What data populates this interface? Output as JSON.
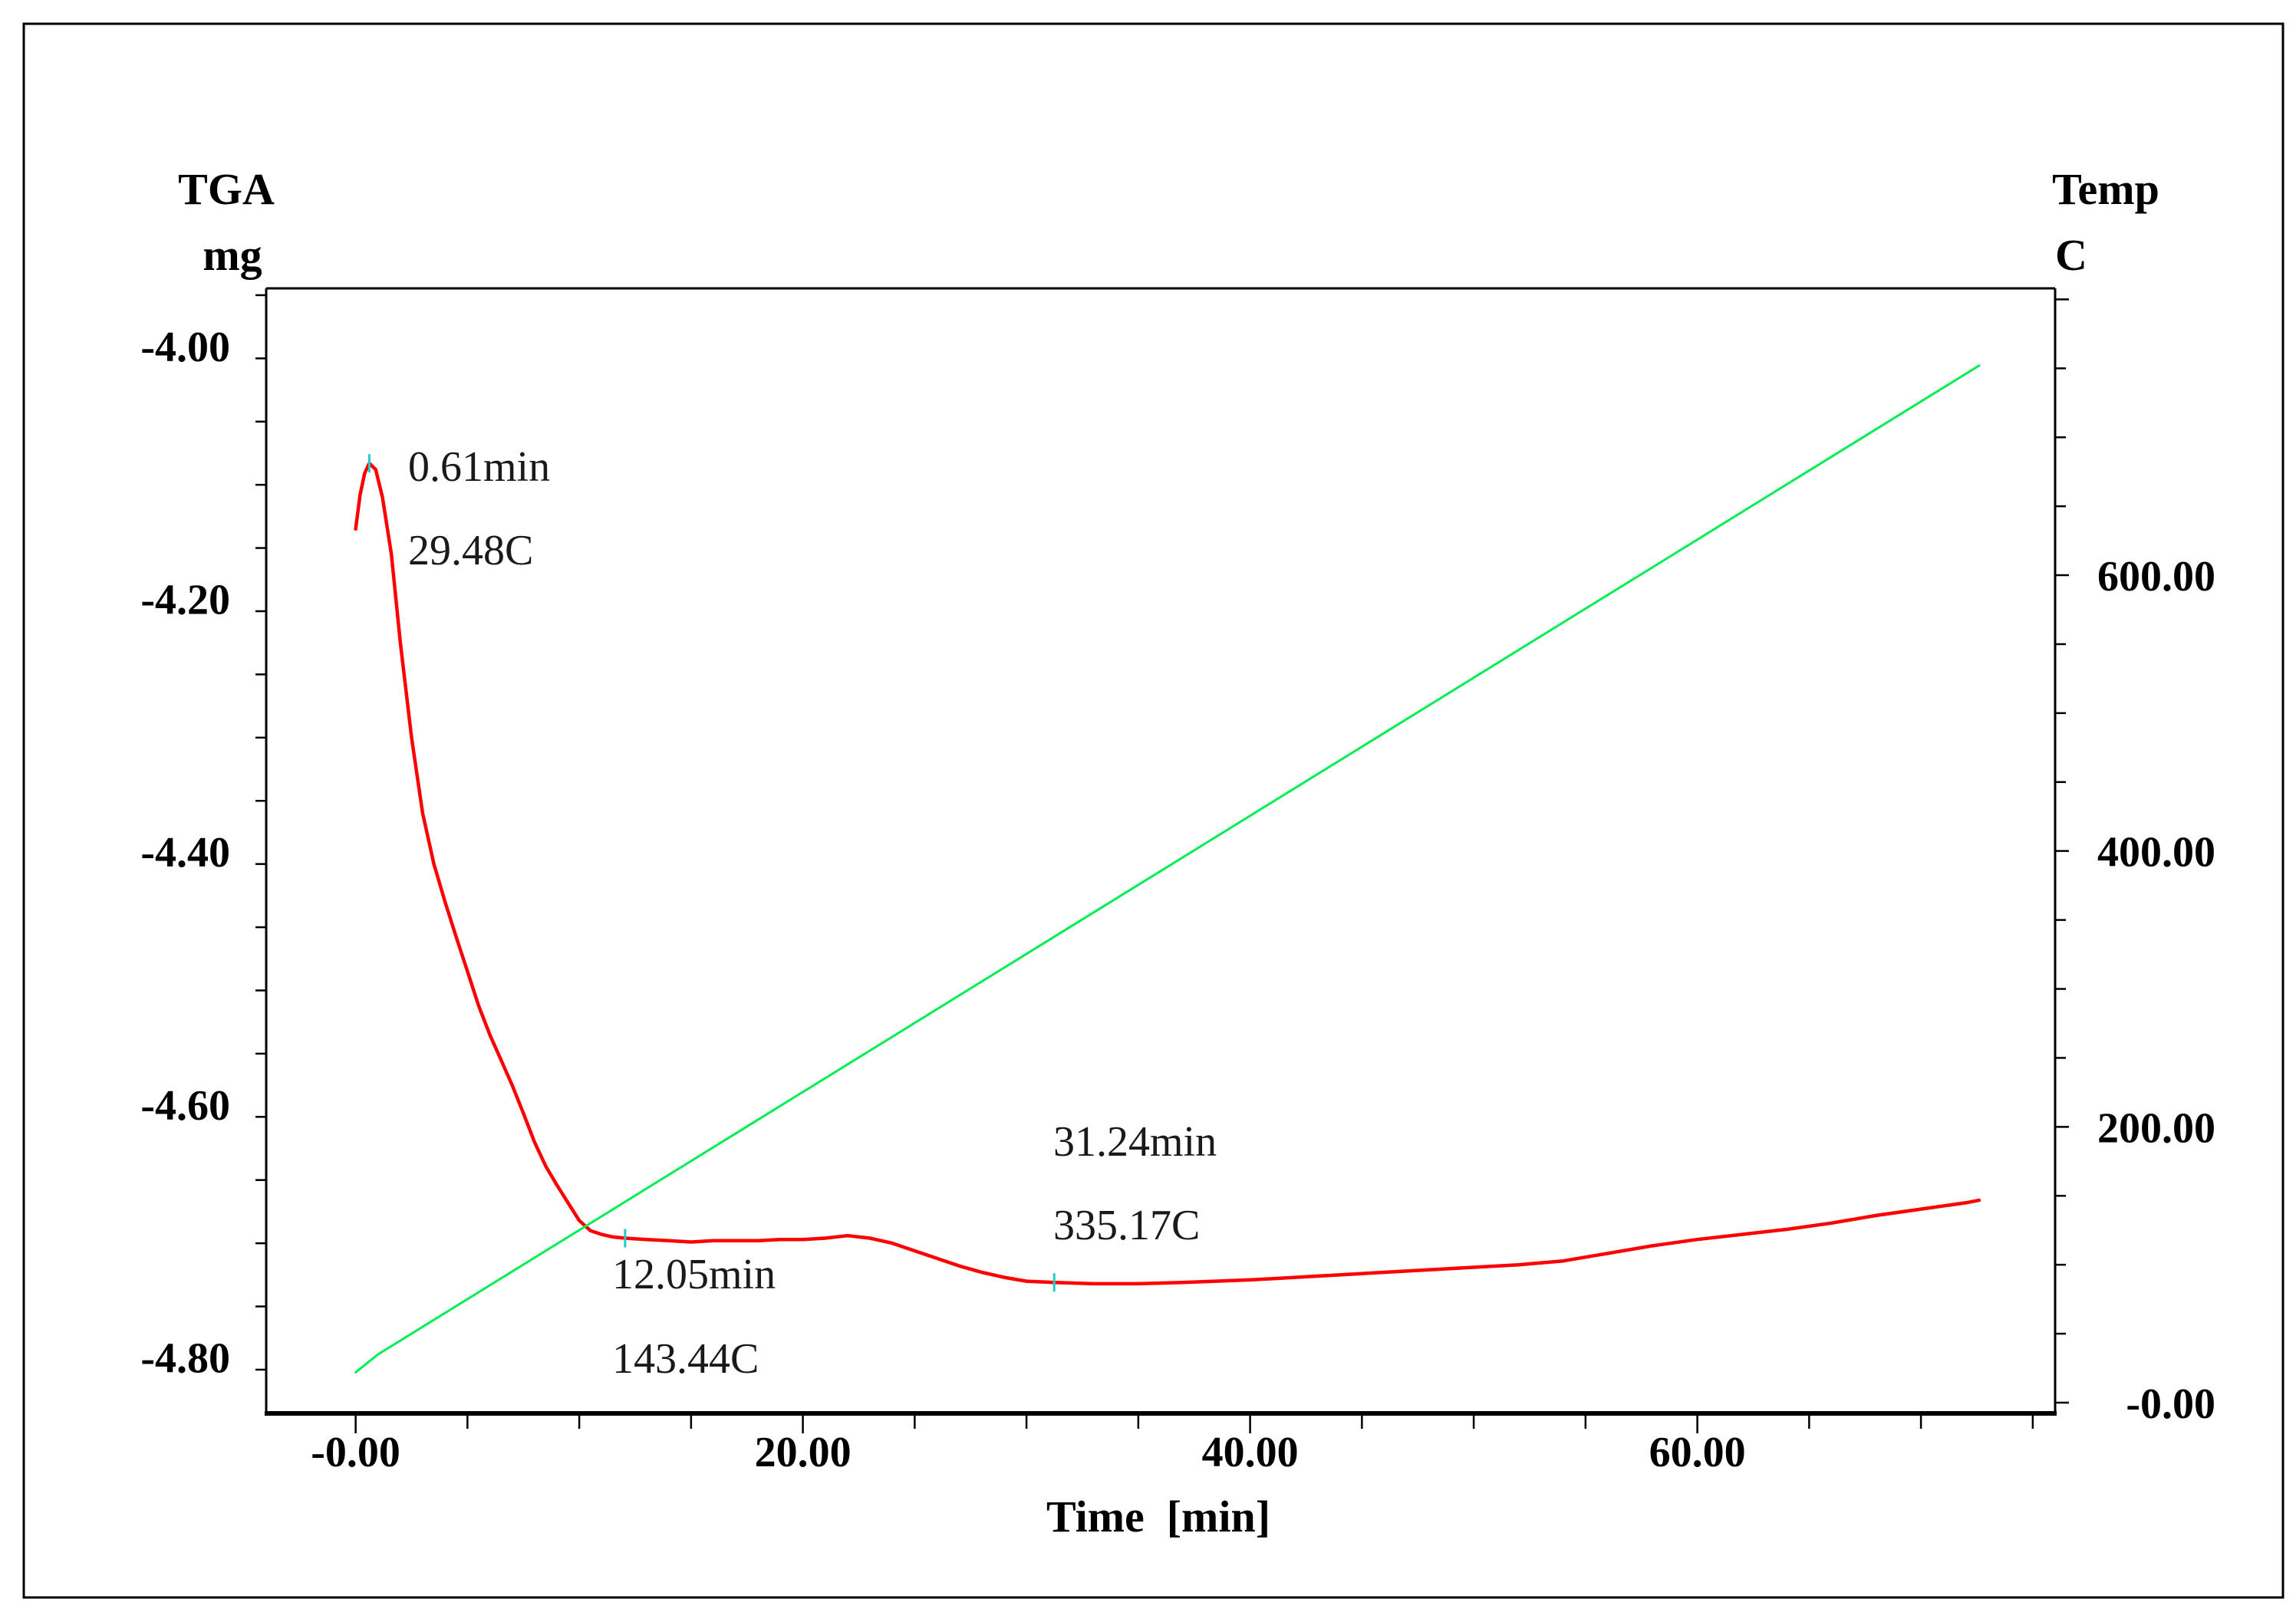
{
  "chart_data": {
    "type": "line",
    "xlabel": "Time  [min]",
    "y_left_label": [
      "TGA",
      "mg"
    ],
    "y_right_label": [
      "Temp",
      "C"
    ],
    "xlim": [
      -4,
      76
    ],
    "ylim_left": [
      -4.8446,
      -3.9546
    ],
    "ylim_right": [
      -7.8,
      808
    ],
    "x_ticks": [
      0,
      20,
      40,
      60
    ],
    "x_tick_labels": [
      "-0.00",
      "20.00",
      "40.00",
      "60.00"
    ],
    "y_left_ticks": [
      -4.0,
      -4.2,
      -4.4,
      -4.6,
      -4.8
    ],
    "y_left_tick_labels": [
      "-4.00",
      "-4.20",
      "-4.40",
      "-4.60",
      "-4.80"
    ],
    "y_right_ticks": [
      600,
      400,
      200,
      0
    ],
    "y_right_tick_labels": [
      "600.00",
      "400.00",
      "200.00",
      "-0.00"
    ],
    "colors": {
      "tga": "#ff0000",
      "temp": "#00ee55",
      "marker": "#22cccc",
      "axis": "#000000"
    },
    "series": [
      {
        "name": "TGA",
        "axis": "left",
        "color": "#ff0000",
        "x": [
          0,
          0.2,
          0.4,
          0.61,
          0.9,
          1.2,
          1.6,
          2.0,
          2.5,
          3.0,
          3.5,
          4.0,
          4.5,
          5.0,
          5.5,
          6.0,
          6.5,
          7.0,
          7.5,
          8.0,
          8.5,
          9.0,
          9.5,
          10.0,
          10.5,
          11.0,
          11.5,
          12.05,
          13.0,
          14.0,
          15.0,
          16.0,
          17.0,
          18.0,
          19.0,
          20.0,
          21.0,
          22.0,
          22.5,
          23.0,
          24.0,
          25.0,
          26.0,
          27.0,
          28.0,
          29.0,
          30.0,
          31.24,
          33.0,
          35.0,
          37.0,
          40.0,
          43.0,
          46.0,
          49.0,
          52.0,
          54.0,
          56.0,
          58.0,
          60.0,
          62.0,
          64.0,
          66.0,
          68.0,
          70.0,
          72.0,
          72.6
        ],
        "y": [
          -4.145,
          -4.118,
          -4.101,
          -4.093,
          -4.098,
          -4.12,
          -4.165,
          -4.235,
          -4.31,
          -4.37,
          -4.41,
          -4.44,
          -4.468,
          -4.495,
          -4.522,
          -4.545,
          -4.565,
          -4.585,
          -4.607,
          -4.63,
          -4.649,
          -4.664,
          -4.678,
          -4.692,
          -4.7,
          -4.703,
          -4.705,
          -4.706,
          -4.707,
          -4.708,
          -4.709,
          -4.708,
          -4.708,
          -4.708,
          -4.707,
          -4.707,
          -4.706,
          -4.704,
          -4.705,
          -4.706,
          -4.71,
          -4.716,
          -4.722,
          -4.728,
          -4.733,
          -4.737,
          -4.74,
          -4.741,
          -4.742,
          -4.742,
          -4.741,
          -4.739,
          -4.736,
          -4.733,
          -4.73,
          -4.727,
          -4.724,
          -4.718,
          -4.712,
          -4.707,
          -4.703,
          -4.699,
          -4.694,
          -4.688,
          -4.683,
          -4.678,
          -4.676
        ]
      },
      {
        "name": "Temp",
        "axis": "right",
        "color": "#00ee55",
        "x": [
          0,
          1,
          72.6
        ],
        "y": [
          22,
          35,
          752
        ]
      }
    ],
    "markers": [
      {
        "x": 0.61,
        "y": -4.093
      },
      {
        "x": 12.05,
        "y": -4.706
      },
      {
        "x": 31.24,
        "y": -4.741
      }
    ]
  },
  "annotations": [
    {
      "time": "0.61min",
      "temp": "29.48C"
    },
    {
      "time": "12.05min",
      "temp": "143.44C"
    },
    {
      "time": "31.24min",
      "temp": "335.17C"
    }
  ]
}
